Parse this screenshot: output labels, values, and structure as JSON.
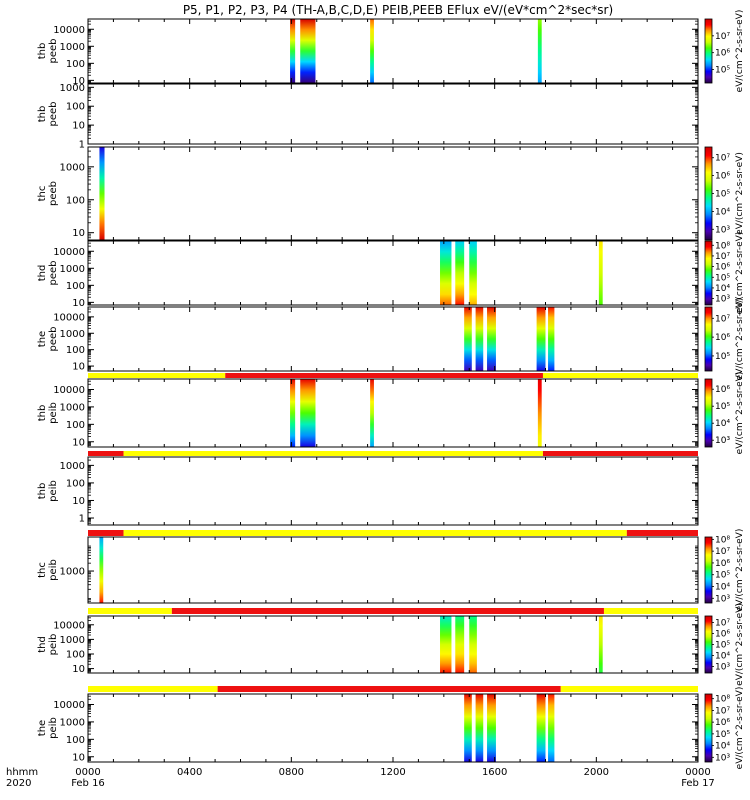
{
  "title": "P5, P1, P2, P3, P4 (TH-A,B,C,D,E) PEIB,PEEB EFlux eV/(eV*cm^2*sec*sr)",
  "time_axis": {
    "corner_line1": "hhmm",
    "corner_line2": "2020",
    "ticks": [
      {
        "hour": 0,
        "label": "0000",
        "date": "Feb 16"
      },
      {
        "hour": 4,
        "label": "0400",
        "date": ""
      },
      {
        "hour": 8,
        "label": "0800",
        "date": ""
      },
      {
        "hour": 12,
        "label": "1200",
        "date": ""
      },
      {
        "hour": 16,
        "label": "1600",
        "date": ""
      },
      {
        "hour": 20,
        "label": "2000",
        "date": ""
      },
      {
        "hour": 24,
        "label": "0000",
        "date": "Feb 17"
      }
    ]
  },
  "colors": {
    "bar_red": "#ee1111",
    "bar_yellow": "#ffff00",
    "colormap": [
      "#220040",
      "#4a00b0",
      "#0000ff",
      "#0088ff",
      "#00ddff",
      "#00ff88",
      "#44ff00",
      "#ccff00",
      "#ffff00",
      "#ff9900",
      "#ff0000",
      "#cc0000"
    ]
  },
  "chart_data": [
    {
      "type": "heatmap",
      "label_line1": "thb",
      "label_line2": "peeb",
      "ylog": true,
      "ylim": [
        7,
        40000
      ],
      "yticks": [
        {
          "v": 10,
          "t": "10"
        },
        {
          "v": 100,
          "t": "100"
        },
        {
          "v": 1000,
          "t": "1000"
        },
        {
          "v": 10000,
          "t": "10000"
        }
      ],
      "colorbar": {
        "log_min": 4.2,
        "log_max": 8,
        "ticks": [
          {
            "v": 5,
            "t": "10⁵"
          },
          {
            "v": 6,
            "t": "10⁶"
          },
          {
            "v": 7,
            "t": "10⁷"
          }
        ],
        "label": "eV/(cm^2-s-sr-eV)"
      },
      "bursts": [
        {
          "start": 7.95,
          "end": 8.15,
          "ymax": 40000,
          "ymin": 7,
          "cmax": 0.98,
          "cmin": 0.05
        },
        {
          "start": 8.35,
          "end": 8.95,
          "ymax": 40000,
          "ymin": 7,
          "cmax": 0.98,
          "cmin": 0.05
        },
        {
          "start": 11.1,
          "end": 11.25,
          "ymax": 40000,
          "ymin": 7,
          "cmax": 0.85,
          "cmin": 0.25
        },
        {
          "start": 17.7,
          "end": 17.85,
          "ymax": 40000,
          "ymin": 7,
          "cmax": 0.6,
          "cmin": 0.3
        }
      ]
    },
    {
      "type": "heatmap",
      "label_line1": "thb",
      "label_line2": "peeb",
      "ylog": true,
      "ylim": [
        1,
        1500
      ],
      "yticks": [
        {
          "v": 1,
          "t": "1"
        },
        {
          "v": 10,
          "t": "10"
        },
        {
          "v": 100,
          "t": "100"
        },
        {
          "v": 1000,
          "t": "1000"
        }
      ],
      "colorbar": null,
      "bursts": []
    },
    {
      "type": "heatmap",
      "label_line1": "thc",
      "label_line2": "peeb",
      "ylog": true,
      "ylim": [
        6,
        4000
      ],
      "yticks": [
        {
          "v": 10,
          "t": "10"
        },
        {
          "v": 100,
          "t": "100"
        },
        {
          "v": 1000,
          "t": "1000"
        }
      ],
      "colorbar": {
        "log_min": 2.4,
        "log_max": 7.6,
        "ticks": [
          {
            "v": 3,
            "t": "10³"
          },
          {
            "v": 4,
            "t": "10⁴"
          },
          {
            "v": 5,
            "t": "10⁵"
          },
          {
            "v": 6,
            "t": "10⁶"
          },
          {
            "v": 7,
            "t": "10⁷"
          }
        ],
        "label": "eV/(cm^2-s-sr-eV)"
      },
      "bursts": [
        {
          "start": 0.45,
          "end": 0.65,
          "ymax": 4000,
          "ymin": 6,
          "cmax": 0.15,
          "cmin": 0.98
        }
      ]
    },
    {
      "type": "heatmap",
      "label_line1": "thd",
      "label_line2": "peeb",
      "ylog": true,
      "ylim": [
        7,
        40000
      ],
      "yticks": [
        {
          "v": 10,
          "t": "10"
        },
        {
          "v": 100,
          "t": "100"
        },
        {
          "v": 1000,
          "t": "1000"
        },
        {
          "v": 10000,
          "t": "10000"
        }
      ],
      "colorbar": {
        "log_min": 2.4,
        "log_max": 8.4,
        "ticks": [
          {
            "v": 3,
            "t": "10³"
          },
          {
            "v": 4,
            "t": "10⁴"
          },
          {
            "v": 5,
            "t": "10⁵"
          },
          {
            "v": 6,
            "t": "10⁶"
          },
          {
            "v": 7,
            "t": "10⁷"
          },
          {
            "v": 8,
            "t": "10⁸"
          }
        ],
        "label": "eV/(cm^2-s-sr-eV)"
      },
      "bursts": [
        {
          "start": 13.85,
          "end": 14.3,
          "ymax": 40000,
          "ymin": 7,
          "cmax": 0.3,
          "cmin": 0.85
        },
        {
          "start": 14.45,
          "end": 14.8,
          "ymax": 40000,
          "ymin": 7,
          "cmax": 0.35,
          "cmin": 0.9
        },
        {
          "start": 15.0,
          "end": 15.3,
          "ymax": 40000,
          "ymin": 7,
          "cmax": 0.35,
          "cmin": 0.8
        },
        {
          "start": 20.1,
          "end": 20.25,
          "ymax": 40000,
          "ymin": 7,
          "cmax": 0.75,
          "cmin": 0.55
        }
      ]
    },
    {
      "type": "heatmap",
      "label_line1": "the",
      "label_line2": "peeb",
      "ylog": true,
      "ylim": [
        5,
        40000
      ],
      "yticks": [
        {
          "v": 10,
          "t": "10"
        },
        {
          "v": 100,
          "t": "100"
        },
        {
          "v": 1000,
          "t": "1000"
        },
        {
          "v": 10000,
          "t": "10000"
        }
      ],
      "colorbar": {
        "log_min": 4.2,
        "log_max": 7.6,
        "ticks": [
          {
            "v": 5,
            "t": "10⁵"
          },
          {
            "v": 6,
            "t": "10⁶"
          },
          {
            "v": 7,
            "t": "10⁷"
          }
        ],
        "label": "eV/(cm^2-s-sr-eV)"
      },
      "bursts": [
        {
          "start": 14.8,
          "end": 15.1,
          "ymax": 40000,
          "ymin": 5,
          "cmax": 0.95,
          "cmin": 0.1
        },
        {
          "start": 15.25,
          "end": 15.55,
          "ymax": 40000,
          "ymin": 5,
          "cmax": 0.95,
          "cmin": 0.1
        },
        {
          "start": 15.7,
          "end": 16.05,
          "ymax": 40000,
          "ymin": 5,
          "cmax": 0.95,
          "cmin": 0.1
        },
        {
          "start": 17.65,
          "end": 18.0,
          "ymax": 40000,
          "ymin": 5,
          "cmax": 0.95,
          "cmin": 0.15
        },
        {
          "start": 18.1,
          "end": 18.35,
          "ymax": 40000,
          "ymin": 5,
          "cmax": 0.9,
          "cmin": 0.2
        }
      ]
    },
    {
      "type": "heatmap",
      "label_line1": "thb",
      "label_line2": "peib",
      "ylog": true,
      "ylim": [
        5,
        40000
      ],
      "yticks": [
        {
          "v": 10,
          "t": "10"
        },
        {
          "v": 100,
          "t": "100"
        },
        {
          "v": 1000,
          "t": "1000"
        },
        {
          "v": 10000,
          "t": "10000"
        }
      ],
      "colorbar": {
        "log_min": 2.6,
        "log_max": 6.6,
        "ticks": [
          {
            "v": 3,
            "t": "10³"
          },
          {
            "v": 4,
            "t": "10⁴"
          },
          {
            "v": 5,
            "t": "10⁵"
          },
          {
            "v": 6,
            "t": "10⁶"
          }
        ],
        "label": "eV/(cm^2-s-sr-eV)"
      },
      "bursts": [
        {
          "start": 7.95,
          "end": 8.15,
          "ymax": 40000,
          "ymin": 5,
          "cmax": 0.95,
          "cmin": 0.2
        },
        {
          "start": 8.35,
          "end": 8.95,
          "ymax": 40000,
          "ymin": 5,
          "cmax": 0.95,
          "cmin": 0.15
        },
        {
          "start": 11.1,
          "end": 11.25,
          "ymax": 40000,
          "ymin": 5,
          "cmax": 0.95,
          "cmin": 0.3
        },
        {
          "start": 17.7,
          "end": 17.85,
          "ymax": 40000,
          "ymin": 5,
          "cmax": 0.95,
          "cmin": 0.7
        }
      ],
      "status_bar": [
        {
          "start": 0,
          "end": 5.4,
          "state": "yellow"
        },
        {
          "start": 5.4,
          "end": 17.9,
          "state": "red"
        },
        {
          "start": 17.9,
          "end": 24,
          "state": "yellow"
        }
      ]
    },
    {
      "type": "heatmap",
      "label_line1": "thb",
      "label_line2": "peib",
      "ylog": true,
      "ylim": [
        0.4,
        3000
      ],
      "yticks": [
        {
          "v": 1,
          "t": "1"
        },
        {
          "v": 10,
          "t": "10"
        },
        {
          "v": 100,
          "t": "100"
        },
        {
          "v": 1000,
          "t": "1000"
        }
      ],
      "colorbar": null,
      "bursts": [],
      "status_bar": [
        {
          "start": 0,
          "end": 1.4,
          "state": "red"
        },
        {
          "start": 1.4,
          "end": 17.9,
          "state": "yellow"
        },
        {
          "start": 17.9,
          "end": 24,
          "state": "red"
        }
      ]
    },
    {
      "type": "heatmap",
      "label_line1": "thc",
      "label_line2": "peib",
      "ylog": true,
      "ylim": [
        60,
        20000
      ],
      "yticks": [
        {
          "v": 1000,
          "t": "1000"
        }
      ],
      "colorbar": {
        "log_min": 2.6,
        "log_max": 8.2,
        "ticks": [
          {
            "v": 3,
            "t": "10³"
          },
          {
            "v": 4,
            "t": "10⁴"
          },
          {
            "v": 5,
            "t": "10⁵"
          },
          {
            "v": 6,
            "t": "10⁶"
          },
          {
            "v": 7,
            "t": "10⁷"
          },
          {
            "v": 8,
            "t": "10⁸"
          }
        ],
        "label": "eV/(cm^2-s-sr-eV)"
      },
      "bursts": [
        {
          "start": 0.45,
          "end": 0.6,
          "ymax": 20000,
          "ymin": 60,
          "cmax": 0.3,
          "cmin": 0.9
        }
      ],
      "status_bar": [
        {
          "start": 0,
          "end": 1.4,
          "state": "red"
        },
        {
          "start": 1.4,
          "end": 21.2,
          "state": "yellow"
        },
        {
          "start": 21.2,
          "end": 24,
          "state": "red"
        }
      ]
    },
    {
      "type": "heatmap",
      "label_line1": "thd",
      "label_line2": "peib",
      "ylog": true,
      "ylim": [
        5,
        40000
      ],
      "yticks": [
        {
          "v": 10,
          "t": "10"
        },
        {
          "v": 100,
          "t": "100"
        },
        {
          "v": 1000,
          "t": "1000"
        },
        {
          "v": 10000,
          "t": "10000"
        }
      ],
      "colorbar": {
        "log_min": 2.4,
        "log_max": 7.6,
        "ticks": [
          {
            "v": 3,
            "t": "10³"
          },
          {
            "v": 4,
            "t": "10⁴"
          },
          {
            "v": 5,
            "t": "10⁵"
          },
          {
            "v": 6,
            "t": "10⁶"
          },
          {
            "v": 7,
            "t": "10⁷"
          }
        ],
        "label": "eV/(cm^2-s-sr-eV)"
      },
      "bursts": [
        {
          "start": 13.85,
          "end": 14.3,
          "ymax": 40000,
          "ymin": 5,
          "cmax": 0.4,
          "cmin": 0.9
        },
        {
          "start": 14.45,
          "end": 14.8,
          "ymax": 40000,
          "ymin": 5,
          "cmax": 0.45,
          "cmin": 0.9
        },
        {
          "start": 15.0,
          "end": 15.3,
          "ymax": 40000,
          "ymin": 5,
          "cmax": 0.45,
          "cmin": 0.85
        },
        {
          "start": 20.1,
          "end": 20.25,
          "ymax": 40000,
          "ymin": 5,
          "cmax": 0.75,
          "cmin": 0.5
        }
      ],
      "status_bar": [
        {
          "start": 0,
          "end": 3.3,
          "state": "yellow"
        },
        {
          "start": 3.3,
          "end": 20.3,
          "state": "red"
        },
        {
          "start": 20.3,
          "end": 24,
          "state": "yellow"
        }
      ]
    },
    {
      "type": "heatmap",
      "label_line1": "the",
      "label_line2": "peib",
      "ylog": true,
      "ylim": [
        5,
        40000
      ],
      "yticks": [
        {
          "v": 10,
          "t": "10"
        },
        {
          "v": 100,
          "t": "100"
        },
        {
          "v": 1000,
          "t": "1000"
        },
        {
          "v": 10000,
          "t": "10000"
        }
      ],
      "colorbar": {
        "log_min": 2.6,
        "log_max": 8.4,
        "ticks": [
          {
            "v": 3,
            "t": "10³"
          },
          {
            "v": 4,
            "t": "10⁴"
          },
          {
            "v": 5,
            "t": "10⁵"
          },
          {
            "v": 6,
            "t": "10⁶"
          },
          {
            "v": 7,
            "t": "10⁷"
          },
          {
            "v": 8,
            "t": "10⁸"
          }
        ],
        "label": "eV/(cm^2-s-sr-eV)"
      },
      "bursts": [
        {
          "start": 14.8,
          "end": 15.1,
          "ymax": 40000,
          "ymin": 5,
          "cmax": 0.95,
          "cmin": 0.15
        },
        {
          "start": 15.25,
          "end": 15.55,
          "ymax": 40000,
          "ymin": 5,
          "cmax": 0.95,
          "cmin": 0.15
        },
        {
          "start": 15.7,
          "end": 16.05,
          "ymax": 40000,
          "ymin": 5,
          "cmax": 0.95,
          "cmin": 0.15
        },
        {
          "start": 17.65,
          "end": 18.0,
          "ymax": 40000,
          "ymin": 5,
          "cmax": 0.95,
          "cmin": 0.2
        },
        {
          "start": 18.1,
          "end": 18.35,
          "ymax": 40000,
          "ymin": 5,
          "cmax": 0.9,
          "cmin": 0.25
        }
      ],
      "status_bar": [
        {
          "start": 0,
          "end": 5.1,
          "state": "yellow"
        },
        {
          "start": 5.1,
          "end": 18.6,
          "state": "red"
        },
        {
          "start": 18.6,
          "end": 24,
          "state": "yellow"
        }
      ]
    }
  ]
}
